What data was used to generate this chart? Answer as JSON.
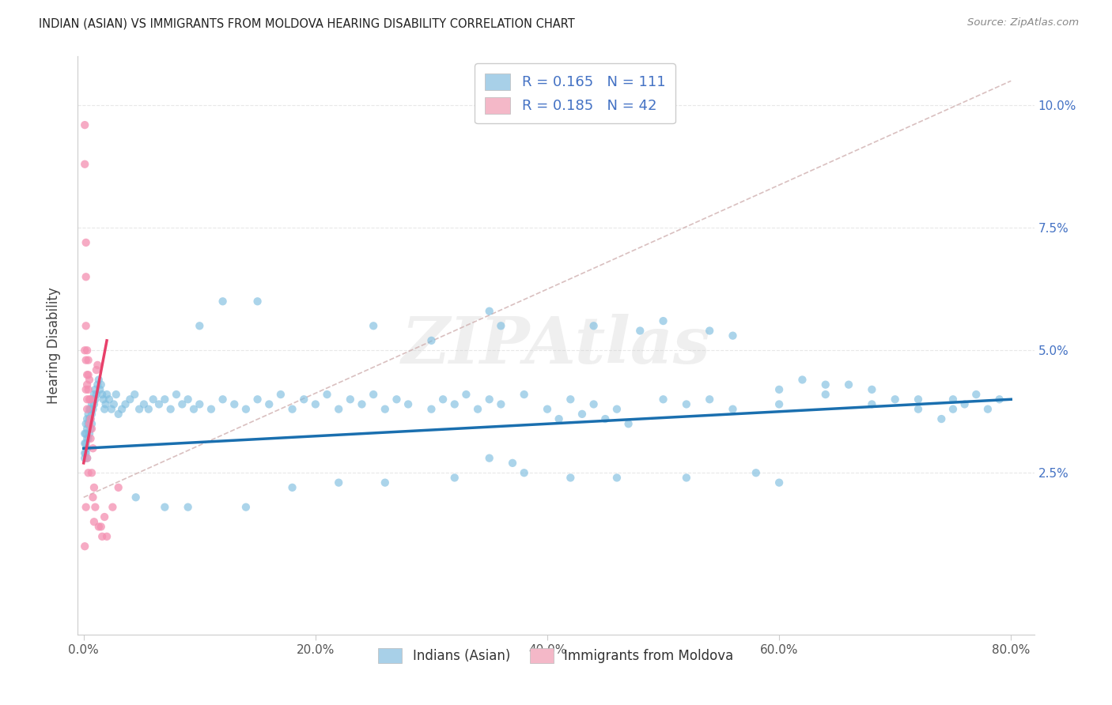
{
  "title": "INDIAN (ASIAN) VS IMMIGRANTS FROM MOLDOVA HEARING DISABILITY CORRELATION CHART",
  "source": "Source: ZipAtlas.com",
  "ylabel": "Hearing Disability",
  "xlim": [
    -0.005,
    0.82
  ],
  "ylim": [
    -0.008,
    0.11
  ],
  "xtick_values": [
    0.0,
    0.2,
    0.4,
    0.6,
    0.8
  ],
  "xtick_labels": [
    "0.0%",
    "20.0%",
    "40.0%",
    "60.0%",
    "80.0%"
  ],
  "ytick_values": [
    0.025,
    0.05,
    0.075,
    0.1
  ],
  "ytick_labels": [
    "2.5%",
    "5.0%",
    "7.5%",
    "10.0%"
  ],
  "watermark_text": "ZIPAtlas",
  "blue_color": "#7fbee0",
  "pink_color": "#f48fb1",
  "blue_line_color": "#1a6faf",
  "pink_line_color": "#e8406a",
  "dashed_line_color": "#d0b0b0",
  "background_color": "#ffffff",
  "grid_color": "#e8e8e8",
  "legend_blue_patch": "#a8d0e8",
  "legend_pink_patch": "#f4b8c8",
  "blue_scatter_x": [
    0.001,
    0.001,
    0.001,
    0.001,
    0.002,
    0.002,
    0.002,
    0.002,
    0.003,
    0.003,
    0.003,
    0.003,
    0.003,
    0.004,
    0.004,
    0.004,
    0.005,
    0.005,
    0.005,
    0.006,
    0.006,
    0.006,
    0.007,
    0.007,
    0.007,
    0.008,
    0.008,
    0.009,
    0.009,
    0.01,
    0.01,
    0.011,
    0.012,
    0.013,
    0.014,
    0.015,
    0.016,
    0.017,
    0.018,
    0.019,
    0.02,
    0.022,
    0.024,
    0.026,
    0.028,
    0.03,
    0.033,
    0.036,
    0.04,
    0.044,
    0.048,
    0.052,
    0.056,
    0.06,
    0.065,
    0.07,
    0.075,
    0.08,
    0.085,
    0.09,
    0.095,
    0.1,
    0.11,
    0.12,
    0.13,
    0.14,
    0.15,
    0.16,
    0.17,
    0.18,
    0.19,
    0.2,
    0.21,
    0.22,
    0.23,
    0.24,
    0.25,
    0.26,
    0.27,
    0.28,
    0.3,
    0.31,
    0.32,
    0.33,
    0.34,
    0.35,
    0.36,
    0.38,
    0.4,
    0.42,
    0.44,
    0.46,
    0.5,
    0.52,
    0.54,
    0.56,
    0.6,
    0.64,
    0.68,
    0.72,
    0.75,
    0.76,
    0.77,
    0.78,
    0.79,
    0.35,
    0.37,
    0.41,
    0.43,
    0.45,
    0.47
  ],
  "blue_scatter_y": [
    0.033,
    0.031,
    0.029,
    0.028,
    0.035,
    0.033,
    0.031,
    0.029,
    0.036,
    0.034,
    0.032,
    0.03,
    0.028,
    0.037,
    0.035,
    0.032,
    0.038,
    0.036,
    0.033,
    0.038,
    0.036,
    0.034,
    0.039,
    0.037,
    0.035,
    0.04,
    0.038,
    0.041,
    0.039,
    0.042,
    0.04,
    0.041,
    0.043,
    0.044,
    0.042,
    0.043,
    0.041,
    0.04,
    0.038,
    0.039,
    0.041,
    0.04,
    0.038,
    0.039,
    0.041,
    0.037,
    0.038,
    0.039,
    0.04,
    0.041,
    0.038,
    0.039,
    0.038,
    0.04,
    0.039,
    0.04,
    0.038,
    0.041,
    0.039,
    0.04,
    0.038,
    0.039,
    0.038,
    0.04,
    0.039,
    0.038,
    0.04,
    0.039,
    0.041,
    0.038,
    0.04,
    0.039,
    0.041,
    0.038,
    0.04,
    0.039,
    0.041,
    0.038,
    0.04,
    0.039,
    0.038,
    0.04,
    0.039,
    0.041,
    0.038,
    0.04,
    0.039,
    0.041,
    0.038,
    0.04,
    0.039,
    0.038,
    0.04,
    0.039,
    0.04,
    0.038,
    0.039,
    0.041,
    0.039,
    0.04,
    0.038,
    0.039,
    0.041,
    0.038,
    0.04,
    0.028,
    0.027,
    0.036,
    0.037,
    0.036,
    0.035
  ],
  "blue_scatter_y_outliers": [
    [
      0.35,
      0.058
    ],
    [
      0.36,
      0.055
    ],
    [
      0.44,
      0.055
    ],
    [
      0.48,
      0.054
    ],
    [
      0.5,
      0.056
    ],
    [
      0.54,
      0.054
    ],
    [
      0.56,
      0.053
    ],
    [
      0.6,
      0.042
    ],
    [
      0.62,
      0.044
    ],
    [
      0.64,
      0.043
    ],
    [
      0.66,
      0.043
    ],
    [
      0.68,
      0.042
    ],
    [
      0.7,
      0.04
    ],
    [
      0.72,
      0.038
    ],
    [
      0.74,
      0.036
    ],
    [
      0.15,
      0.06
    ],
    [
      0.12,
      0.06
    ],
    [
      0.1,
      0.055
    ],
    [
      0.25,
      0.055
    ],
    [
      0.3,
      0.052
    ],
    [
      0.75,
      0.04
    ],
    [
      0.045,
      0.02
    ],
    [
      0.07,
      0.018
    ],
    [
      0.09,
      0.018
    ],
    [
      0.14,
      0.018
    ],
    [
      0.18,
      0.022
    ],
    [
      0.22,
      0.023
    ],
    [
      0.26,
      0.023
    ],
    [
      0.32,
      0.024
    ],
    [
      0.38,
      0.025
    ],
    [
      0.42,
      0.024
    ],
    [
      0.46,
      0.024
    ],
    [
      0.52,
      0.024
    ],
    [
      0.58,
      0.025
    ],
    [
      0.6,
      0.023
    ]
  ],
  "pink_scatter_x": [
    0.001,
    0.001,
    0.001,
    0.001,
    0.002,
    0.002,
    0.002,
    0.002,
    0.002,
    0.002,
    0.003,
    0.003,
    0.003,
    0.003,
    0.003,
    0.003,
    0.004,
    0.004,
    0.004,
    0.004,
    0.005,
    0.005,
    0.005,
    0.006,
    0.006,
    0.006,
    0.007,
    0.007,
    0.008,
    0.008,
    0.009,
    0.009,
    0.01,
    0.011,
    0.012,
    0.013,
    0.015,
    0.016,
    0.018,
    0.02,
    0.025,
    0.03
  ],
  "pink_scatter_y": [
    0.096,
    0.088,
    0.05,
    0.01,
    0.072,
    0.065,
    0.055,
    0.048,
    0.042,
    0.018,
    0.05,
    0.045,
    0.043,
    0.04,
    0.038,
    0.028,
    0.048,
    0.045,
    0.042,
    0.025,
    0.044,
    0.04,
    0.035,
    0.04,
    0.036,
    0.032,
    0.034,
    0.025,
    0.03,
    0.02,
    0.022,
    0.015,
    0.018,
    0.046,
    0.047,
    0.014,
    0.014,
    0.012,
    0.016,
    0.012,
    0.018,
    0.022
  ],
  "blue_line_x0": 0.0,
  "blue_line_x1": 0.8,
  "blue_line_y0": 0.03,
  "blue_line_y1": 0.04,
  "pink_line_x0": 0.0,
  "pink_line_x1": 0.02,
  "pink_line_y0": 0.027,
  "pink_line_y1": 0.052,
  "dash_line_x0": 0.0,
  "dash_line_x1": 0.8,
  "dash_line_y0": 0.02,
  "dash_line_y1": 0.105
}
